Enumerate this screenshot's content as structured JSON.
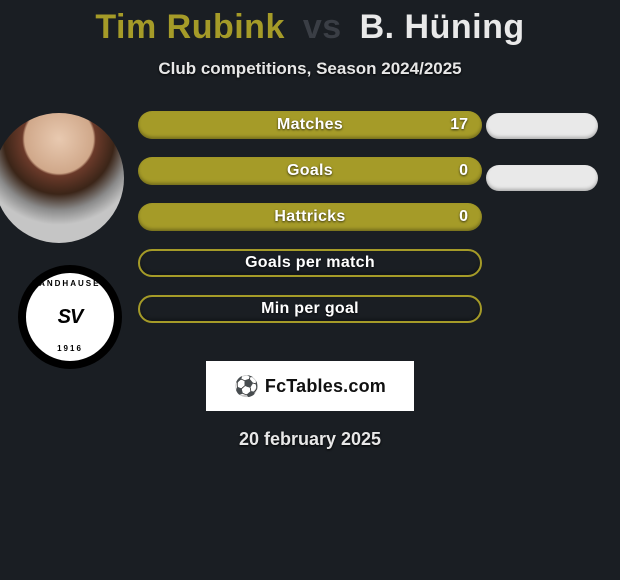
{
  "title": {
    "player1": "Tim Rubink",
    "vs": "vs",
    "player2": "B. Hüning",
    "player1_color": "#a59b28",
    "vs_color": "#3a3e45",
    "player2_color": "#e9e9e9"
  },
  "subtitle": "Club competitions, Season 2024/2025",
  "club_badge": {
    "top_text": "SANDHAUSEN",
    "center": "SV",
    "year": "1916"
  },
  "stats": [
    {
      "label": "Matches",
      "value_left": "17",
      "bar_filled": true,
      "right_pill": true
    },
    {
      "label": "Goals",
      "value_left": "0",
      "bar_filled": true,
      "right_pill": true
    },
    {
      "label": "Hattricks",
      "value_left": "0",
      "bar_filled": true,
      "right_pill": false
    },
    {
      "label": "Goals per match",
      "value_left": "",
      "bar_filled": false,
      "right_pill": false
    },
    {
      "label": "Min per goal",
      "value_left": "",
      "bar_filled": false,
      "right_pill": false
    }
  ],
  "bar": {
    "fill_color": "#a59b28",
    "border_color": "#a59b28",
    "text_color": "#ffffff",
    "right_pill_color": "#e9e9e9"
  },
  "branding": {
    "icon": "⚽",
    "text": "FcTables.com"
  },
  "date": "20 february 2025",
  "background_color": "#1a1e23"
}
